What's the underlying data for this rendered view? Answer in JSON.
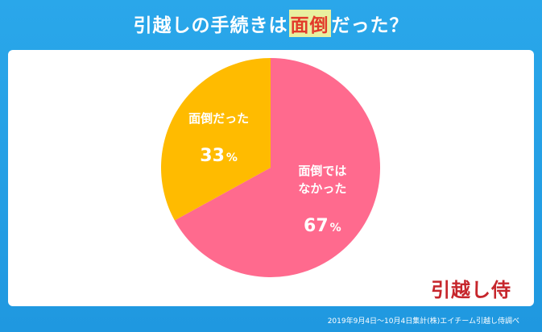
{
  "header": {
    "title_before": "引越しの手続きは",
    "title_highlight": "面倒",
    "title_after": "だった？"
  },
  "colors": {
    "background": "#1f98e0",
    "slice_no": "#ff6a8e",
    "slice_yes": "#ffbb00",
    "highlight_bg": "#e8f0a0",
    "highlight_text": "#e23a2a",
    "logo": "#c6262c"
  },
  "chart_data": {
    "type": "pie",
    "title": "引越しの手続きは面倒だった？",
    "slices": [
      {
        "label": "面倒ではなかった",
        "label_lines": [
          "面倒では",
          "なかった"
        ],
        "value": 67,
        "value_label": "67",
        "unit": "%",
        "color": "#ff6a8e"
      },
      {
        "label": "面倒だった",
        "label_lines": [
          "面倒だった"
        ],
        "value": 33,
        "value_label": "33",
        "unit": "%",
        "color": "#ffbb00"
      }
    ],
    "start": "top",
    "direction": "clockwise"
  },
  "logo_text": "引越し侍",
  "footnote": "2019年9月4日〜10月4日集計(株)エイチーム引越し侍調べ"
}
